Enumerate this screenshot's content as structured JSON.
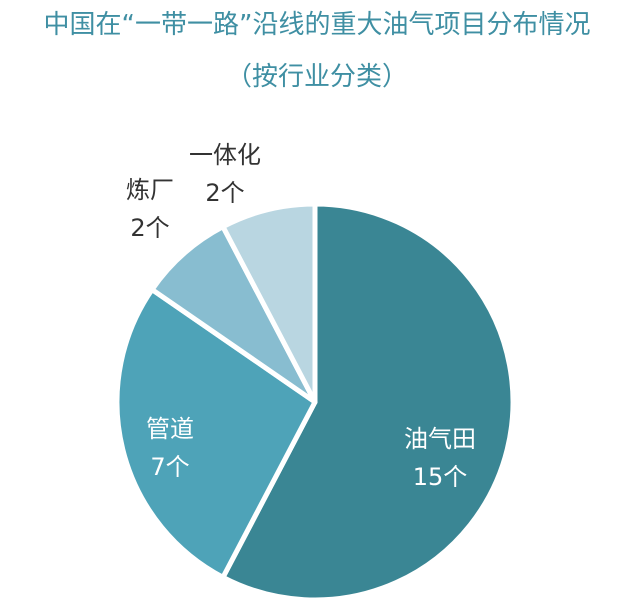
{
  "chart_data": {
    "type": "pie",
    "title": "中国在“一带一路”沿线的重大油气项目分布情况",
    "subtitle": "（按行业分类）",
    "slices": [
      {
        "name": "油气田",
        "value": 15,
        "value_label": "15个",
        "color": "#3a8694",
        "label_color": "#ffffff"
      },
      {
        "name": "管道",
        "value": 7,
        "value_label": "7个",
        "color": "#4ea3b8",
        "label_color": "#ffffff"
      },
      {
        "name": "炼厂",
        "value": 2,
        "value_label": "2个",
        "color": "#88bdd0",
        "label_color": "#333333"
      },
      {
        "name": "一体化",
        "value": 2,
        "value_label": "2个",
        "color": "#b9d6e1",
        "label_color": "#333333"
      }
    ]
  }
}
